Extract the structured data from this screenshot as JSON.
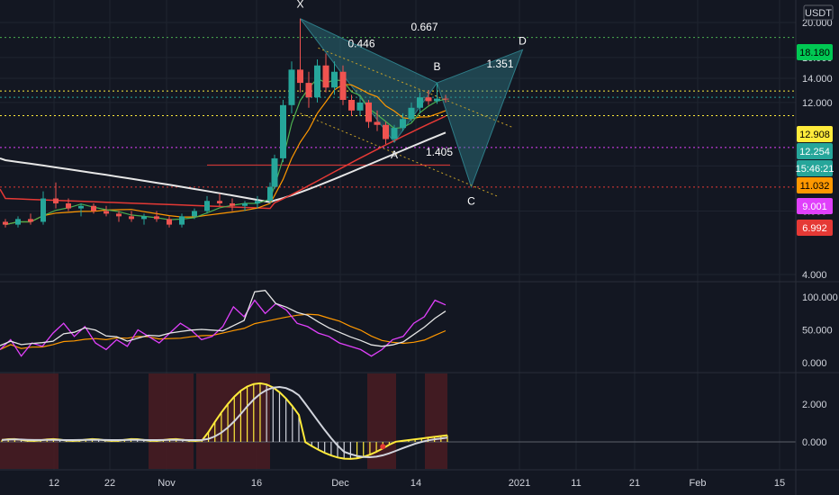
{
  "currency": "USDT",
  "colors": {
    "bg": "#131722",
    "grid": "#1f2430",
    "up": "#26a69a",
    "down": "#ef5350",
    "pattern": "#2e7d88",
    "white_line": "#e6e6e6",
    "green_ma": "#4caf50",
    "orange_ma": "#ff9800",
    "red_ma": "#e53935",
    "rsi_pink": "#e040fb",
    "hist_yellow": "#ffeb3b",
    "hist_white": "#d1d4dc",
    "dark_red_band": "#4a1c22"
  },
  "chart_data": [
    {
      "type": "candlestick",
      "title": "",
      "price_axis": {
        "scale": "log",
        "ticks": [
          "4.000",
          "6.000",
          "8.000",
          "12.000",
          "14.000",
          "16.000",
          "20.000"
        ]
      },
      "x_ticks": [
        "12",
        "22",
        "Nov",
        "16",
        "Dec",
        "14",
        "2021",
        "11",
        "21",
        "Feb",
        "15"
      ],
      "price_tags": [
        {
          "label": "18.180",
          "value": 18.18,
          "bg": "#00c853",
          "fg": "#000000",
          "line": "#4caf50"
        },
        {
          "label": "12.908",
          "value": 12.908,
          "bg": "#ffeb3b",
          "fg": "#000000",
          "line": "#ffeb3b"
        },
        {
          "label": "12.254",
          "value": 12.4,
          "bg": "#26a69a",
          "fg": "#ffffff",
          "line": "#26a69a"
        },
        {
          "label": "15:46:21",
          "value": 11.6,
          "bg": "#26a69a",
          "fg": "#ffffff",
          "line": ""
        },
        {
          "label": "11.032",
          "value": 11.032,
          "bg": "#ff9800",
          "fg": "#000000",
          "line": "#ffeb3b"
        },
        {
          "label": "9.001",
          "value": 9.001,
          "bg": "#e040fb",
          "fg": "#ffffff",
          "line": "#e040fb"
        },
        {
          "label": "6.992",
          "value": 6.992,
          "bg": "#e53935",
          "fg": "#ffffff",
          "line": "#e53935"
        }
      ],
      "pattern_points": [
        {
          "name": "X",
          "label": "X",
          "date_index": 25,
          "price": 20.5
        },
        {
          "name": "A",
          "label": "A",
          "date_index": 36,
          "price": 9.3
        },
        {
          "name": "B",
          "label": "B",
          "date_index": 41,
          "price": 13.6
        },
        {
          "name": "C",
          "label": "C",
          "date_index": 45,
          "price": 7.0
        },
        {
          "name": "D",
          "label": "D",
          "date_index": 51,
          "price": 16.8
        }
      ],
      "ratios": [
        "0.446",
        "0.667",
        "1.351",
        "1.405"
      ],
      "candles": [
        [
          5.6,
          5.7,
          5.4,
          5.5
        ],
        [
          5.5,
          5.8,
          5.4,
          5.7
        ],
        [
          5.7,
          5.9,
          5.5,
          5.6
        ],
        [
          5.6,
          6.8,
          5.5,
          6.5
        ],
        [
          6.5,
          7.2,
          6.1,
          6.3
        ],
        [
          6.3,
          6.5,
          6.0,
          6.1
        ],
        [
          6.1,
          6.3,
          5.8,
          6.2
        ],
        [
          6.2,
          6.3,
          5.9,
          6.0
        ],
        [
          6.0,
          6.2,
          5.8,
          5.9
        ],
        [
          5.9,
          6.0,
          5.6,
          5.8
        ],
        [
          5.8,
          6.0,
          5.6,
          5.7
        ],
        [
          5.7,
          5.9,
          5.5,
          5.8
        ],
        [
          5.8,
          6.0,
          5.6,
          5.7
        ],
        [
          5.7,
          5.8,
          5.4,
          5.5
        ],
        [
          5.5,
          5.9,
          5.4,
          5.8
        ],
        [
          5.8,
          6.1,
          5.7,
          6.0
        ],
        [
          6.0,
          6.6,
          5.9,
          6.4
        ],
        [
          6.4,
          6.7,
          6.2,
          6.3
        ],
        [
          6.3,
          6.5,
          6.0,
          6.2
        ],
        [
          6.2,
          6.4,
          6.0,
          6.3
        ],
        [
          6.3,
          6.6,
          6.1,
          6.4
        ],
        [
          6.4,
          7.2,
          6.3,
          7.0
        ],
        [
          7.0,
          8.6,
          6.9,
          8.4
        ],
        [
          8.4,
          12.2,
          8.2,
          11.8
        ],
        [
          11.8,
          15.6,
          11.2,
          14.8
        ],
        [
          14.8,
          20.5,
          12.8,
          13.6
        ],
        [
          13.6,
          14.6,
          11.6,
          12.4
        ],
        [
          12.4,
          15.8,
          12.0,
          15.2
        ],
        [
          15.2,
          16.4,
          12.8,
          13.2
        ],
        [
          13.2,
          15.6,
          12.6,
          14.6
        ],
        [
          14.6,
          15.2,
          11.8,
          12.2
        ],
        [
          12.2,
          12.6,
          11.0,
          11.4
        ],
        [
          11.4,
          12.4,
          11.0,
          12.0
        ],
        [
          12.0,
          12.2,
          10.2,
          10.6
        ],
        [
          10.6,
          11.4,
          10.0,
          10.4
        ],
        [
          10.4,
          10.6,
          9.2,
          9.5
        ],
        [
          9.5,
          10.4,
          9.3,
          10.2
        ],
        [
          10.2,
          11.2,
          10.0,
          10.8
        ],
        [
          10.8,
          12.0,
          10.6,
          11.6
        ],
        [
          11.6,
          12.8,
          11.2,
          12.4
        ],
        [
          12.4,
          13.0,
          11.8,
          12.1
        ],
        [
          12.1,
          13.6,
          11.9,
          12.3
        ],
        [
          12.3,
          12.6,
          12.0,
          12.25
        ]
      ]
    },
    {
      "type": "line",
      "title": "",
      "y_ticks": [
        "100.000",
        "50.000",
        "0.000"
      ],
      "ylim": [
        0,
        110
      ]
    },
    {
      "type": "bar",
      "title": "",
      "y_ticks": [
        "2.000",
        "0.000"
      ],
      "ylim": [
        -1,
        3.5
      ]
    }
  ]
}
